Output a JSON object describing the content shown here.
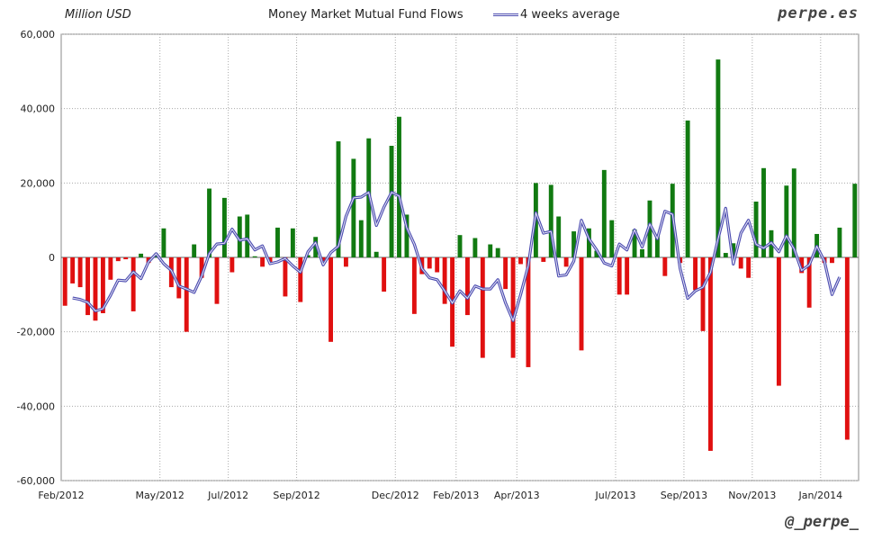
{
  "header": {
    "unit_label": "Million USD",
    "title": "Money Market Mutual Fund Flows",
    "legend_label": "4 weeks average",
    "brand": "perpe.es",
    "handle": "@_perpe_"
  },
  "colors": {
    "positive": "#117a11",
    "negative": "#e01010",
    "average_line": "#4b4bb0",
    "grid": "#aaaaaa"
  },
  "chart_data": {
    "type": "bar",
    "title": "Money Market Mutual Fund Flows",
    "ylabel": "Million USD",
    "xlabel": "",
    "ylim": [
      -60000,
      60000
    ],
    "yticks": [
      60000,
      40000,
      20000,
      0,
      -20000,
      -40000,
      -60000
    ],
    "ytick_labels": [
      "60,000",
      "40,000",
      "20,000",
      "0",
      "-20,000",
      "-40,000",
      "-60,000"
    ],
    "xticks": [
      {
        "label": "Feb/2012",
        "week": 0
      },
      {
        "label": "May/2012",
        "week": 13
      },
      {
        "label": "Jul/2012",
        "week": 22
      },
      {
        "label": "Sep/2012",
        "week": 31
      },
      {
        "label": "Dec/2012",
        "week": 44
      },
      {
        "label": "Feb/2013",
        "week": 52
      },
      {
        "label": "Apr/2013",
        "week": 60
      },
      {
        "label": "Jul/2013",
        "week": 73
      },
      {
        "label": "Sep/2013",
        "week": 82
      },
      {
        "label": "Nov/2013",
        "week": 91
      },
      {
        "label": "Jan/2014",
        "week": 100
      }
    ],
    "grid": true,
    "legend_position": "top",
    "series": [
      {
        "values": [
          -13000,
          -7000,
          -8000,
          -15500,
          -17000,
          -15000,
          -6000,
          -1000,
          -500,
          -14500,
          1000,
          -1500,
          1000,
          7800,
          -8000,
          -11000,
          -20000,
          3500,
          -5500,
          18500,
          -12500,
          16000,
          -4000,
          11000,
          11500,
          300,
          -2500,
          -1200,
          8000,
          -10500,
          7800,
          -12000,
          600,
          5500,
          -1000,
          -22700,
          31200,
          -2500,
          26500,
          10000,
          32000,
          1500,
          -9200,
          30000,
          37800,
          11500,
          -15200,
          -4500,
          -3000,
          -4000,
          -12500,
          -24000,
          6000,
          -15500,
          5200,
          -27000,
          3500,
          2500,
          -8500,
          -27000,
          -1800,
          -29500,
          20000,
          -1200,
          19500,
          11000,
          -2500,
          7000,
          -25000,
          7800,
          1800,
          23500,
          10000,
          -10000,
          -10000,
          7500,
          2200,
          15300,
          6000,
          -5000,
          19800,
          -1500,
          36800,
          -8800,
          -19800,
          -52000,
          53200,
          1200,
          3800,
          -3000,
          -5500,
          15000,
          24000,
          7300,
          -34500,
          19300,
          23900,
          -4200,
          -13500,
          6300,
          -1500,
          -1500,
          8000,
          -49000,
          19800
        ],
        "color_by_sign": true
      },
      {
        "name": "4 weeks average",
        "start_week": 1,
        "values": [
          -10900,
          -11300,
          -12100,
          -14400,
          -13800,
          -10200,
          -6100,
          -6300,
          -3900,
          -5700,
          -1200,
          1000,
          -1700,
          -3500,
          -7700,
          -8500,
          -9400,
          -5000,
          1000,
          3600,
          3800,
          7600,
          4600,
          5000,
          2000,
          3100,
          -1700,
          -1200,
          -300,
          -2300,
          -4000,
          1500,
          4000,
          -2000,
          1300,
          3000,
          11000,
          16000,
          16200,
          17500,
          8600,
          13500,
          17500,
          16500,
          8000,
          3500,
          -3000,
          -5500,
          -6000,
          -9000,
          -12300,
          -9000,
          -11000,
          -7700,
          -8500,
          -8500,
          -6000,
          -12200,
          -17000,
          -10000,
          -2300,
          12000,
          6500,
          7000,
          -5000,
          -4700,
          -1000,
          10000,
          5000,
          2000,
          -1500,
          -2300,
          3600,
          2000,
          7400,
          2800,
          9000,
          5000,
          12400,
          11600,
          -3000,
          -11000,
          -9000,
          -8000,
          -4000,
          5000,
          13200,
          -1800,
          6500,
          10000,
          3500,
          2500,
          4000,
          1500,
          5800,
          2300,
          -3500,
          -2000,
          3000,
          -1000,
          -10000,
          -5300
        ]
      }
    ]
  }
}
